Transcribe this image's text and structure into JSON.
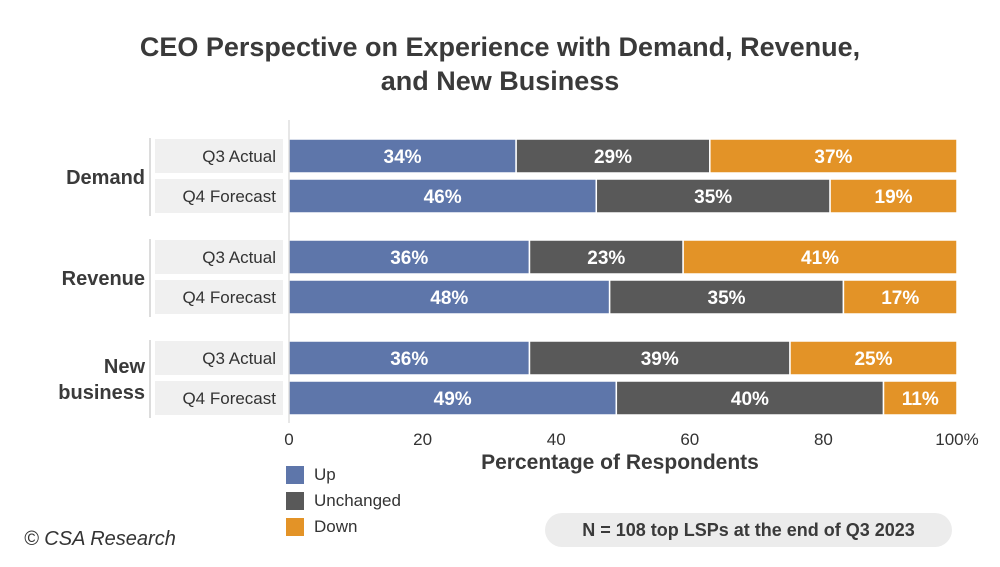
{
  "colors": {
    "up": "#5e76aa",
    "unchanged": "#595959",
    "down": "#e39327",
    "row_label_bg": "#f0f0f0"
  },
  "chart_data": {
    "type": "bar",
    "orientation": "horizontal",
    "stacked": true,
    "title_lines": [
      "CEO Perspective on Experience with Demand, Revenue,",
      "and New Business"
    ],
    "xlabel": "Percentage of Respondents",
    "xlim": [
      0,
      100
    ],
    "xticks": [
      "0",
      "20",
      "40",
      "60",
      "80",
      "100%"
    ],
    "series": [
      {
        "name": "Up",
        "color": "#5e76aa"
      },
      {
        "name": "Unchanged",
        "color": "#595959"
      },
      {
        "name": "Down",
        "color": "#e39327"
      }
    ],
    "groups": [
      {
        "label_lines": [
          "Demand"
        ],
        "rows": [
          {
            "label": "Q3 Actual",
            "values": [
              34,
              29,
              37
            ],
            "labels": [
              "34%",
              "29%",
              "37%"
            ]
          },
          {
            "label": "Q4 Forecast",
            "values": [
              46,
              35,
              19
            ],
            "labels": [
              "46%",
              "35%",
              "19%"
            ]
          }
        ]
      },
      {
        "label_lines": [
          "Revenue"
        ],
        "rows": [
          {
            "label": "Q3 Actual",
            "values": [
              36,
              23,
              41
            ],
            "labels": [
              "36%",
              "23%",
              "41%"
            ]
          },
          {
            "label": "Q4 Forecast",
            "values": [
              48,
              35,
              17
            ],
            "labels": [
              "48%",
              "35%",
              "17%"
            ]
          }
        ]
      },
      {
        "label_lines": [
          "New",
          "business"
        ],
        "rows": [
          {
            "label": "Q3 Actual",
            "values": [
              36,
              39,
              25
            ],
            "labels": [
              "36%",
              "39%",
              "25%"
            ]
          },
          {
            "label": "Q4 Forecast",
            "values": [
              49,
              40,
              11
            ],
            "labels": [
              "49%",
              "40%",
              "11%"
            ]
          }
        ]
      }
    ],
    "legend_position": "bottom-left",
    "grid": false
  },
  "footer": {
    "copyright": "© CSA Research",
    "sample_note": "N = 108 top LSPs at the end of Q3 2023"
  }
}
